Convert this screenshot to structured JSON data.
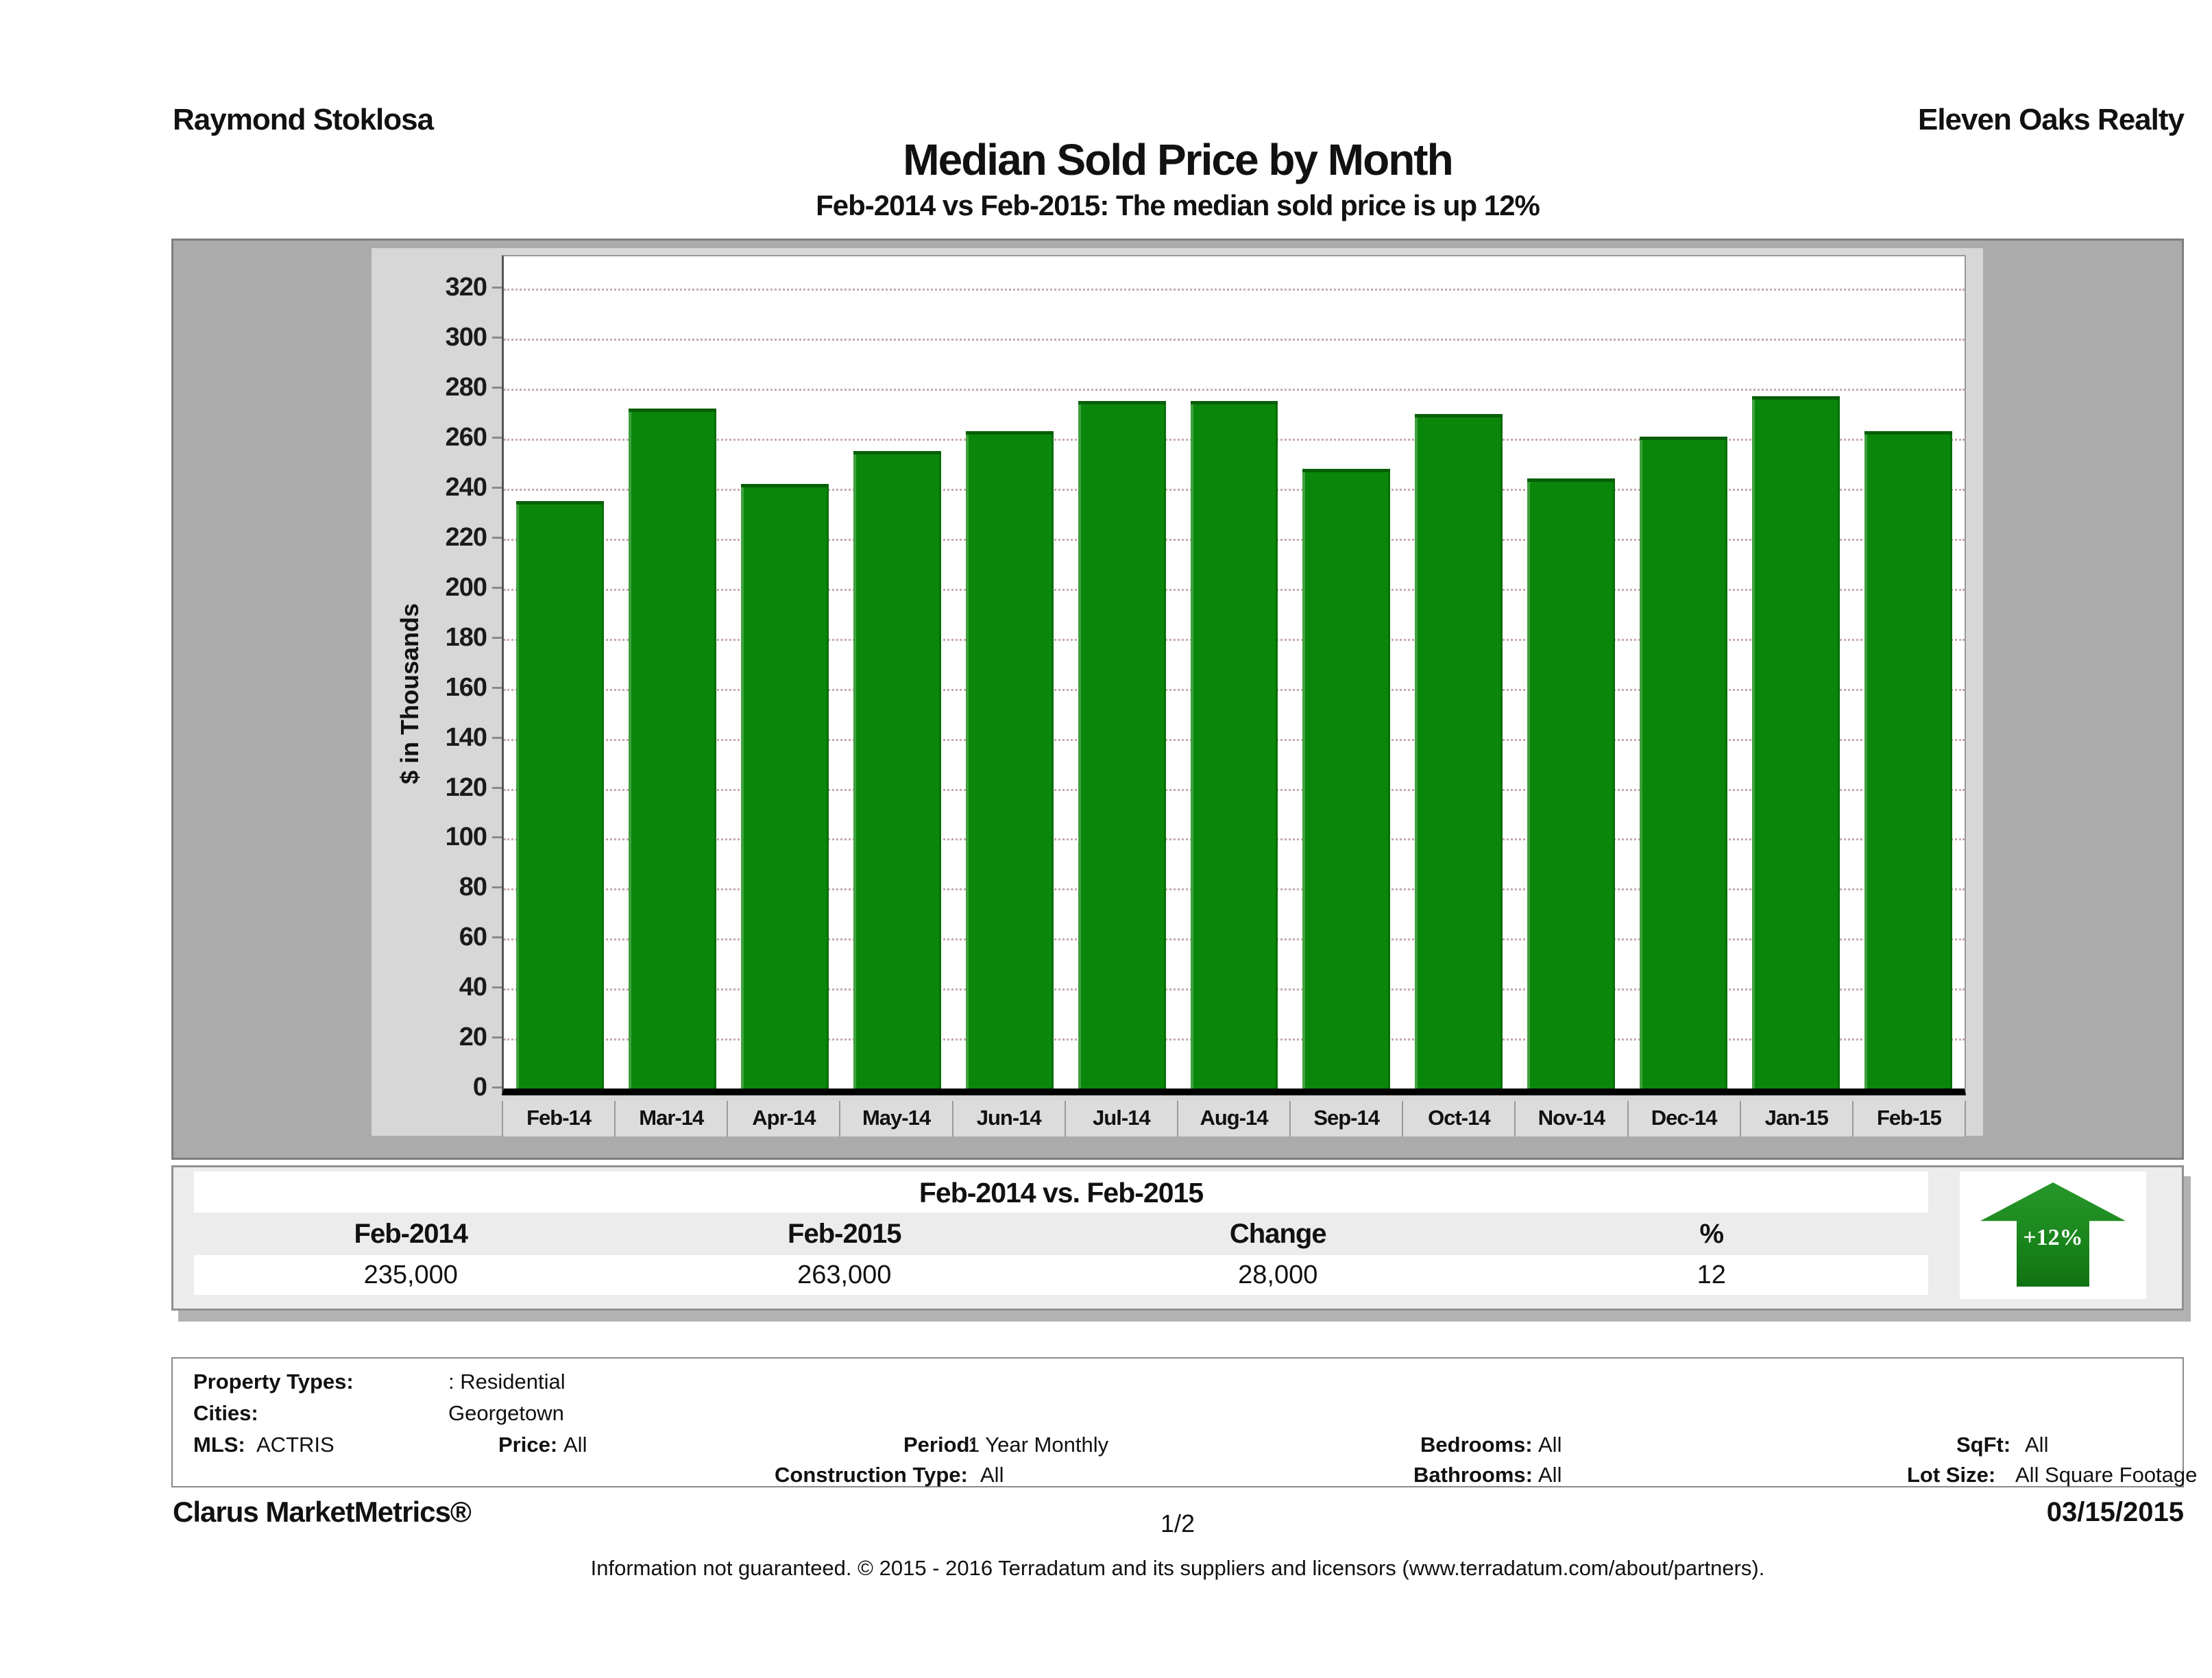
{
  "page": {
    "agent_name": "Raymond Stoklosa",
    "company_name": "Eleven Oaks Realty",
    "title": "Median Sold Price by Month",
    "subtitle": "Feb-2014 vs Feb-2015: The median sold price is up 12%"
  },
  "chart_data": {
    "type": "bar",
    "title": "Median Sold Price by Month",
    "xlabel": "",
    "ylabel": "$ in Thousands",
    "categories": [
      "Feb-14",
      "Mar-14",
      "Apr-14",
      "May-14",
      "Jun-14",
      "Jul-14",
      "Aug-14",
      "Sep-14",
      "Oct-14",
      "Nov-14",
      "Dec-14",
      "Jan-15",
      "Feb-15"
    ],
    "values": [
      235,
      272,
      242,
      255,
      263,
      275,
      275,
      248,
      270,
      244,
      261,
      277,
      263
    ],
    "units": "thousands of dollars",
    "ylim": [
      0,
      333
    ],
    "yticks": [
      0,
      20,
      40,
      60,
      80,
      100,
      120,
      140,
      160,
      180,
      200,
      220,
      240,
      260,
      280,
      300,
      320
    ],
    "grid": "horizontal dotted",
    "legend": "none",
    "bar_color": "#0a870a"
  },
  "summary_table": {
    "title": "Feb-2014 vs. Feb-2015",
    "columns": [
      "Feb-2014",
      "Feb-2015",
      "Change",
      "%"
    ],
    "row": [
      "235,000",
      "263,000",
      "28,000",
      "12"
    ],
    "arrow_label": "+12%"
  },
  "filters": {
    "property_types_label": "Property Types:",
    "property_types_value": ": Residential",
    "cities_label": "Cities:",
    "cities_value": "Georgetown",
    "mls_label": "MLS:",
    "mls_value": "ACTRIS",
    "price_label": "Price:",
    "price_value": "All",
    "period_label": "Period:",
    "period_value": "1 Year Monthly",
    "bedrooms_label": "Bedrooms:",
    "bedrooms_value": "All",
    "sqft_label": "SqFt:",
    "sqft_value": "All",
    "construction_label": "Construction Type:",
    "construction_value": "All",
    "bathrooms_label": "Bathrooms:",
    "bathrooms_value": "All",
    "lot_size_label": "Lot Size:",
    "lot_size_value": "All Square Footage"
  },
  "footer": {
    "brand": "Clarus MarketMetrics®",
    "page_number": "1/2",
    "date": "03/15/2015",
    "disclaimer": "Information not guaranteed. © 2015 - 2016 Terradatum and its suppliers and licensors (www.terradatum.com/about/partners)."
  },
  "colors": {
    "bar_green": "#0a870a",
    "bar_top_edge": "#075f07",
    "arrow_green": "#1d8a1f",
    "container_gray": "#ababab",
    "panel_gray": "#d7d7d7",
    "summary_bg": "#ececec",
    "gridline": "#c9a9a9"
  }
}
